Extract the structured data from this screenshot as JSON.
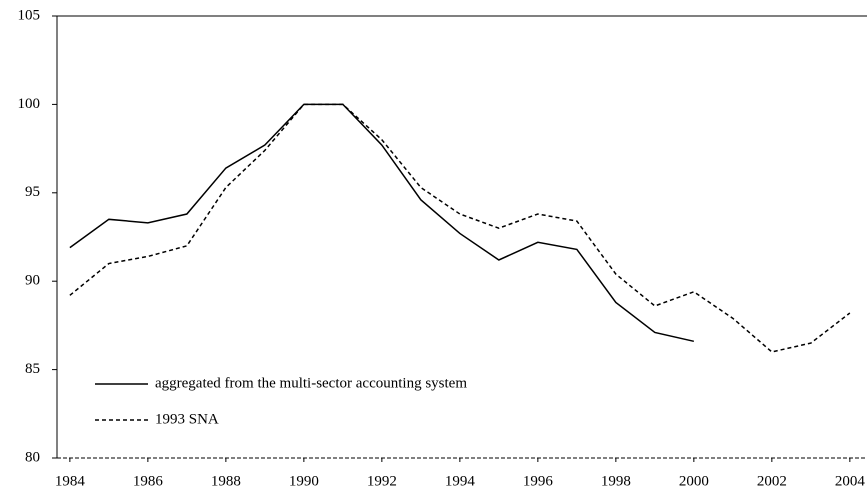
{
  "chart_data": {
    "type": "line",
    "x": [
      1984,
      1985,
      1986,
      1987,
      1988,
      1989,
      1990,
      1991,
      1992,
      1993,
      1994,
      1995,
      1996,
      1997,
      1998,
      1999,
      2000,
      2001,
      2002,
      2003,
      2004
    ],
    "series": [
      {
        "name": "aggregated from the multi-sector accounting system",
        "color": "#000000",
        "dash": "solid",
        "values": [
          91.9,
          93.5,
          93.3,
          93.8,
          96.4,
          97.7,
          100,
          100,
          97.7,
          94.6,
          92.7,
          91.2,
          92.2,
          91.8,
          88.8,
          87.1,
          86.6,
          null,
          null,
          null,
          null
        ]
      },
      {
        "name": "1993 SNA",
        "color": "#000000",
        "dash": "dotted",
        "values": [
          89.2,
          91.0,
          91.4,
          92.0,
          95.3,
          97.4,
          100,
          100,
          98.0,
          95.3,
          93.8,
          93.0,
          93.8,
          93.4,
          90.4,
          88.6,
          89.4,
          87.9,
          86.0,
          86.5,
          88.2
        ]
      }
    ],
    "xlim": [
      1983.67,
      2004.44
    ],
    "ylim": [
      80,
      105
    ],
    "xticks": [
      1984,
      1986,
      1988,
      1990,
      1992,
      1994,
      1996,
      1998,
      2000,
      2002,
      2004
    ],
    "yticks": [
      80,
      85,
      90,
      95,
      100,
      105
    ],
    "legend": "lower-left"
  }
}
